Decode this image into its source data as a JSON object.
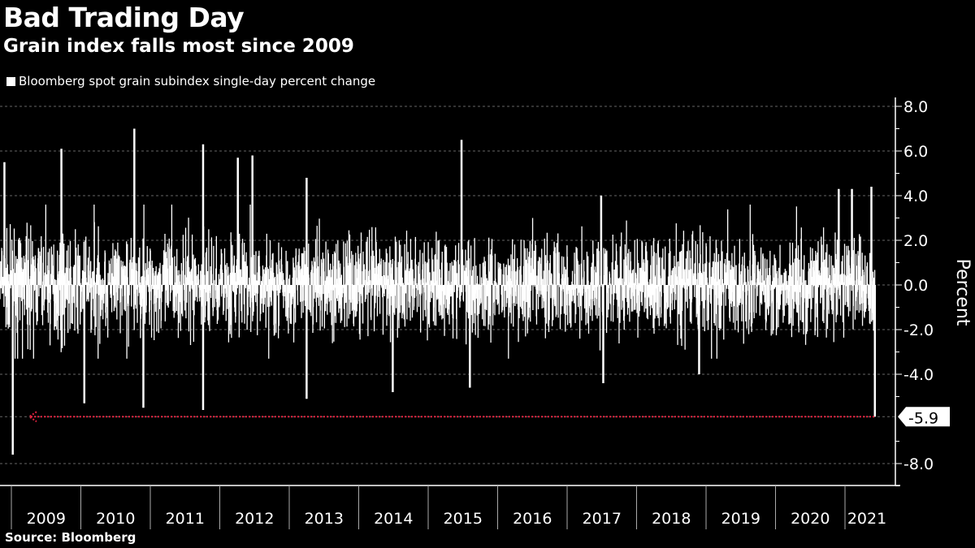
{
  "chart_data": {
    "type": "bar",
    "title": "Bad Trading Day",
    "subtitle": "Grain index falls most since 2009",
    "legend": [
      {
        "label": "Bloomberg spot grain subindex single-day percent change",
        "color": "#ffffff"
      }
    ],
    "ylabel": "Percent",
    "ylim": [
      -9,
      8.5
    ],
    "yticks": [
      "8.0",
      "6.0",
      "4.0",
      "2.0",
      "0.0",
      "-2.0",
      "-4.0",
      "-8.0"
    ],
    "ytick_values": [
      8,
      6,
      4,
      2,
      0,
      -2,
      -4,
      -8
    ],
    "xlim": [
      2008.85,
      2021.55
    ],
    "x_tick_labels": [
      "2009",
      "2010",
      "2011",
      "2012",
      "2013",
      "2014",
      "2015",
      "2016",
      "2017",
      "2018",
      "2019",
      "2020",
      "2021"
    ],
    "grid": "horizontal dashed",
    "annotation": {
      "label": "-5.9",
      "value": -5.9,
      "color": "#e0223f"
    },
    "typical_daily_volatility": 1.1,
    "notable_points": [
      {
        "x": 2008.9,
        "y": 5.5
      },
      {
        "x": 2009.02,
        "y": -7.6
      },
      {
        "x": 2009.72,
        "y": 6.1
      },
      {
        "x": 2010.05,
        "y": -5.3
      },
      {
        "x": 2010.77,
        "y": 7.0
      },
      {
        "x": 2010.9,
        "y": -5.5
      },
      {
        "x": 2011.76,
        "y": 6.3
      },
      {
        "x": 2011.76,
        "y": -5.6
      },
      {
        "x": 2012.26,
        "y": 5.7
      },
      {
        "x": 2012.47,
        "y": 5.8
      },
      {
        "x": 2013.25,
        "y": 4.8
      },
      {
        "x": 2013.25,
        "y": -5.1
      },
      {
        "x": 2014.49,
        "y": -4.8
      },
      {
        "x": 2015.48,
        "y": 6.5
      },
      {
        "x": 2015.6,
        "y": -4.6
      },
      {
        "x": 2017.49,
        "y": 4.0
      },
      {
        "x": 2017.52,
        "y": -4.4
      },
      {
        "x": 2018.9,
        "y": -4.0
      },
      {
        "x": 2020.91,
        "y": 4.3
      },
      {
        "x": 2021.1,
        "y": 4.3
      },
      {
        "x": 2021.38,
        "y": 4.4
      },
      {
        "x": 2021.43,
        "y": -5.9
      }
    ]
  },
  "source": "Source: Bloomberg"
}
